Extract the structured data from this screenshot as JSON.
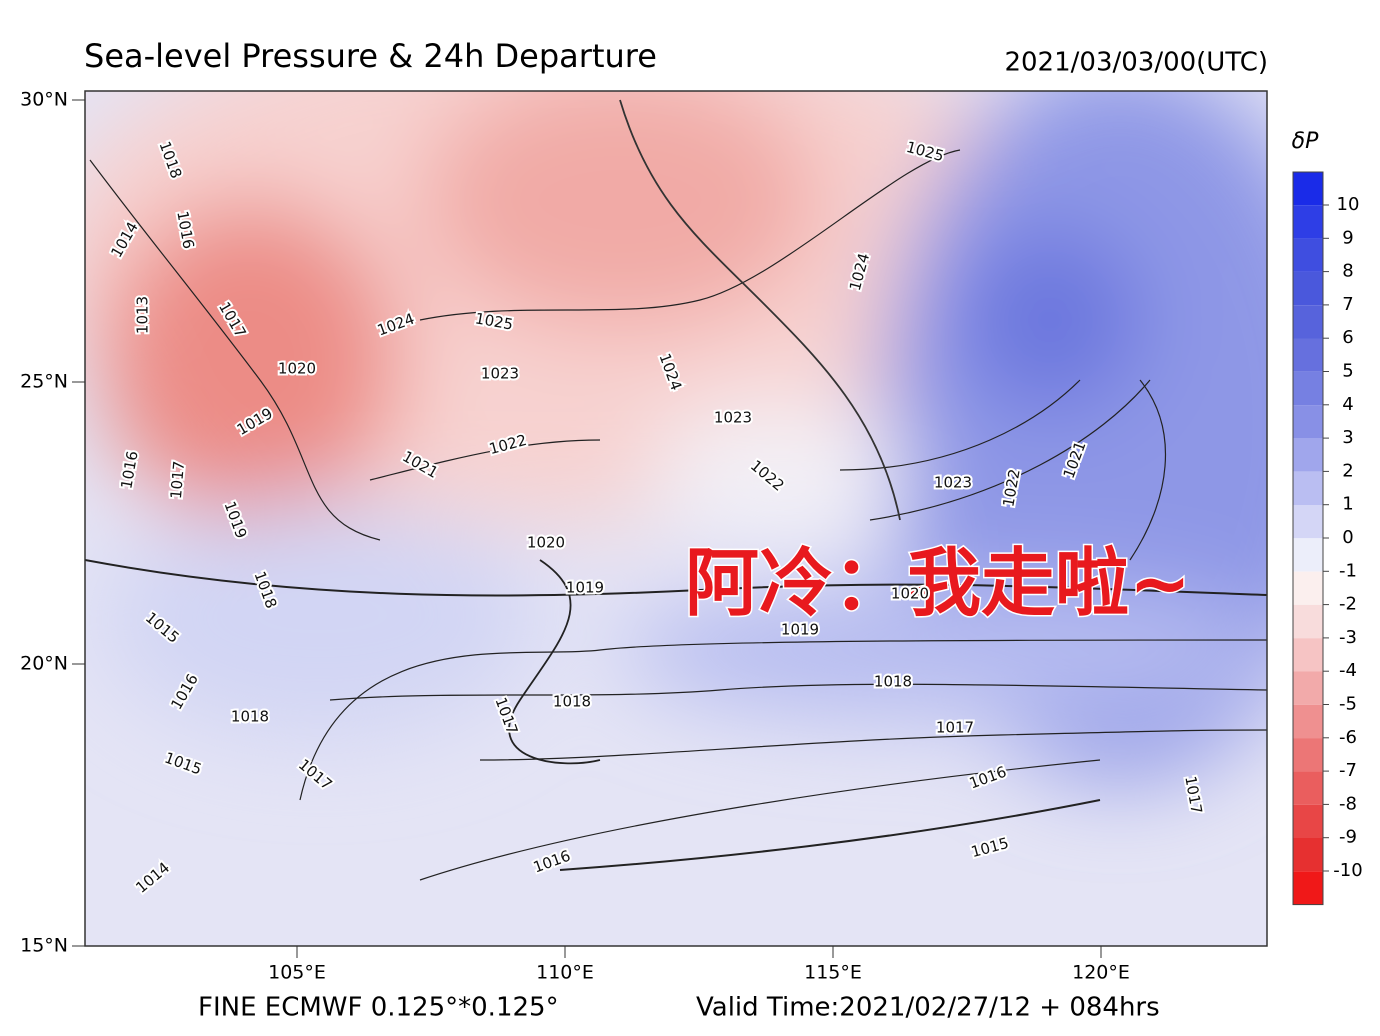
{
  "header": {
    "title": "Sea-level Pressure & 24h Departure",
    "date": "2021/03/03/00(UTC)"
  },
  "lat_labels": [
    {
      "value": 30,
      "label": "30°N"
    },
    {
      "value": 25,
      "label": "25°N"
    },
    {
      "value": 20,
      "label": "20°N"
    },
    {
      "value": 15,
      "label": "15°N"
    }
  ],
  "lon_labels": [
    {
      "value": 105,
      "label": "105°E"
    },
    {
      "value": 110,
      "label": "110°E"
    },
    {
      "value": 115,
      "label": "115°E"
    },
    {
      "value": 120,
      "label": "120°E"
    }
  ],
  "colorbar": {
    "label": "δP",
    "ticks": [
      10,
      9,
      8,
      7,
      6,
      5,
      4,
      3,
      2,
      1,
      0,
      -1,
      -2,
      -3,
      -4,
      -5,
      -6,
      -7,
      -8,
      -9,
      -10
    ],
    "colors": [
      "#1a2be8",
      "#2e3ee6",
      "#3f4ee0",
      "#4a58dc",
      "#5763dc",
      "#6670de",
      "#7680e2",
      "#8890e6",
      "#a0a6ec",
      "#babef2",
      "#d4d6f6",
      "#eceefa",
      "#fbefee",
      "#f8dcdc",
      "#f6c4c4",
      "#f2aaaa",
      "#ef9090",
      "#ec7676",
      "#ea5e5e",
      "#e84646",
      "#e63030",
      "#f01818"
    ]
  },
  "contour_labels": [
    "1018",
    "1016",
    "1014",
    "1013",
    "1017",
    "1020",
    "1019",
    "1024",
    "1025",
    "1023",
    "1022",
    "1021",
    "1016",
    "1017",
    "1019",
    "1018",
    "1020",
    "1019",
    "1025",
    "1024",
    "1024",
    "1023",
    "1022",
    "1023",
    "1022",
    "1021",
    "1020",
    "1019",
    "1018",
    "1017",
    "1016",
    "1015",
    "1016",
    "1014",
    "1015",
    "1018",
    "1016",
    "1015",
    "1017",
    "1018",
    "1017",
    "1017"
  ],
  "overlay_text": "阿冷：我走啦~",
  "footer": {
    "left": "FINE ECMWF 0.125°*0.125°",
    "right": "Valid Time:2021/02/27/12 + 084hrs"
  }
}
